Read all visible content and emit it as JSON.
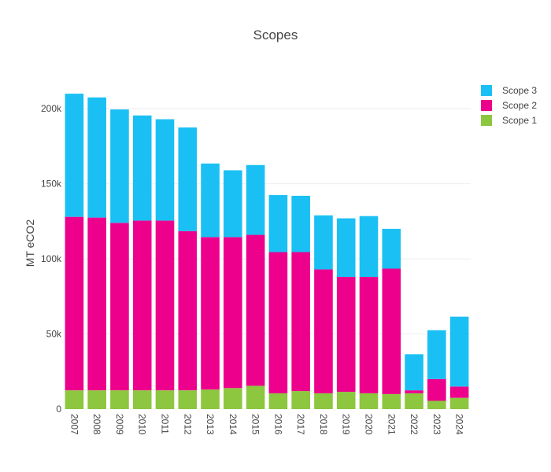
{
  "chart_data": {
    "type": "bar",
    "stacked": true,
    "title": "Scopes",
    "xlabel": "",
    "ylabel": "MT eCO2",
    "ylim": [
      0,
      220000
    ],
    "yticks": [
      0,
      50000,
      100000,
      150000,
      200000
    ],
    "ytick_labels": [
      "0",
      "50k",
      "100k",
      "150k",
      "200k"
    ],
    "grid": true,
    "legend_position": "top-right",
    "categories": [
      "2007",
      "2008",
      "2009",
      "2010",
      "2011",
      "2012",
      "2013",
      "2014",
      "2015",
      "2016",
      "2017",
      "2018",
      "2019",
      "2020",
      "2021",
      "2022",
      "2023",
      "2024"
    ],
    "series": [
      {
        "name": "Scope 1",
        "color": "#8dc63f",
        "values": [
          12500,
          12500,
          12500,
          12500,
          12500,
          12500,
          13000,
          14000,
          15500,
          10500,
          12000,
          10500,
          11500,
          10500,
          10000,
          10500,
          5500,
          7500
        ]
      },
      {
        "name": "Scope 2",
        "color": "#ec008c",
        "values": [
          115500,
          115000,
          111500,
          113000,
          113000,
          106000,
          101500,
          100500,
          100500,
          94000,
          92500,
          82500,
          76500,
          77500,
          83500,
          2000,
          14500,
          7500
        ]
      },
      {
        "name": "Scope 3",
        "color": "#1ac0f4",
        "values": [
          82000,
          80000,
          75500,
          70000,
          67500,
          69000,
          49000,
          44500,
          46500,
          38000,
          37500,
          36000,
          39000,
          40500,
          26500,
          24000,
          32500,
          46500
        ]
      }
    ]
  }
}
